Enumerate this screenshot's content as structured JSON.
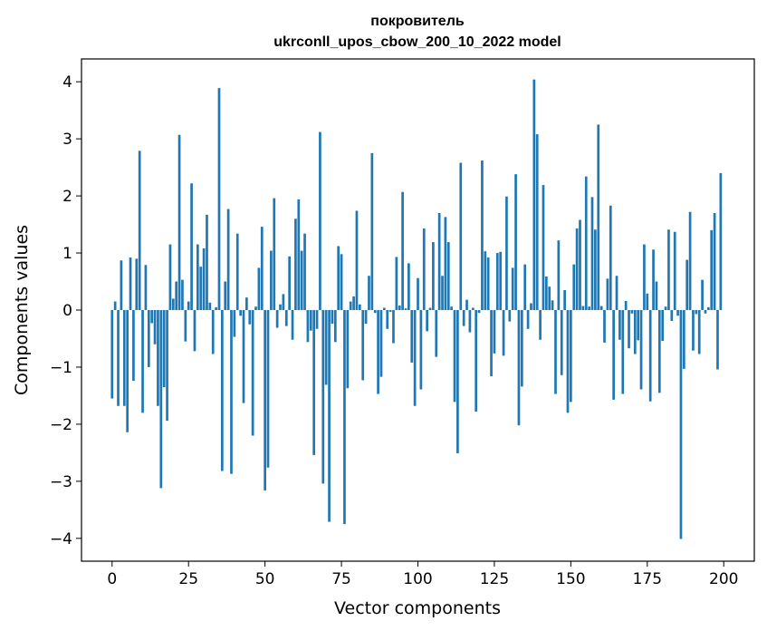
{
  "chart_data": {
    "type": "bar",
    "title": "покровитель",
    "subtitle": "ukrconll_upos_cbow_200_10_2022 model",
    "xlabel": "Vector components",
    "ylabel": "Components values",
    "xlim": [
      -10,
      210
    ],
    "ylim": [
      -4.4,
      4.4
    ],
    "xticks": [
      0,
      25,
      50,
      75,
      100,
      125,
      150,
      175,
      200
    ],
    "yticks": [
      -4,
      -3,
      -2,
      -1,
      0,
      1,
      2,
      3,
      4
    ],
    "xtick_labels": [
      "0",
      "25",
      "50",
      "75",
      "100",
      "125",
      "150",
      "175",
      "200"
    ],
    "ytick_labels": [
      "−4",
      "−3",
      "−2",
      "−1",
      "0",
      "1",
      "2",
      "3",
      "4"
    ],
    "bar_color": "#1f77b4",
    "grid": false,
    "x": [
      0,
      1,
      2,
      3,
      4,
      5,
      6,
      7,
      8,
      9,
      10,
      11,
      12,
      13,
      14,
      15,
      16,
      17,
      18,
      19,
      20,
      21,
      22,
      23,
      24,
      25,
      26,
      27,
      28,
      29,
      30,
      31,
      32,
      33,
      34,
      35,
      36,
      37,
      38,
      39,
      40,
      41,
      42,
      43,
      44,
      45,
      46,
      47,
      48,
      49,
      50,
      51,
      52,
      53,
      54,
      55,
      56,
      57,
      58,
      59,
      60,
      61,
      62,
      63,
      64,
      65,
      66,
      67,
      68,
      69,
      70,
      71,
      72,
      73,
      74,
      75,
      76,
      77,
      78,
      79,
      80,
      81,
      82,
      83,
      84,
      85,
      86,
      87,
      88,
      89,
      90,
      91,
      92,
      93,
      94,
      95,
      96,
      97,
      98,
      99,
      100,
      101,
      102,
      103,
      104,
      105,
      106,
      107,
      108,
      109,
      110,
      111,
      112,
      113,
      114,
      115,
      116,
      117,
      118,
      119,
      120,
      121,
      122,
      123,
      124,
      125,
      126,
      127,
      128,
      129,
      130,
      131,
      132,
      133,
      134,
      135,
      136,
      137,
      138,
      139,
      140,
      141,
      142,
      143,
      144,
      145,
      146,
      147,
      148,
      149,
      150,
      151,
      152,
      153,
      154,
      155,
      156,
      157,
      158,
      159,
      160,
      161,
      162,
      163,
      164,
      165,
      166,
      167,
      168,
      169,
      170,
      171,
      172,
      173,
      174,
      175,
      176,
      177,
      178,
      179,
      180,
      181,
      182,
      183,
      184,
      185,
      186,
      187,
      188,
      189,
      190,
      191,
      192,
      193,
      194,
      195,
      196,
      197,
      198,
      199
    ],
    "values": [
      -1.55,
      0.15,
      -1.68,
      0.87,
      -1.68,
      -2.14,
      0.92,
      -1.24,
      0.9,
      2.79,
      -1.8,
      0.79,
      -1.0,
      -0.23,
      -0.6,
      -1.68,
      -3.12,
      -1.35,
      -1.94,
      1.15,
      0.2,
      0.5,
      3.07,
      0.53,
      -0.55,
      0.15,
      2.22,
      -0.72,
      1.15,
      0.76,
      1.08,
      1.67,
      0.13,
      -0.77,
      0.05,
      3.89,
      -2.82,
      0.5,
      1.77,
      -2.87,
      -0.47,
      1.34,
      -0.1,
      -1.63,
      0.22,
      -0.25,
      -2.2,
      0.06,
      0.74,
      1.46,
      -3.16,
      -2.76,
      1.04,
      1.96,
      -0.31,
      0.1,
      0.28,
      -0.28,
      0.94,
      -0.52,
      1.6,
      1.94,
      1.04,
      1.34,
      -0.56,
      -0.36,
      -2.54,
      -0.33,
      3.12,
      -3.04,
      -1.31,
      -3.71,
      -0.24,
      -0.56,
      1.12,
      0.98,
      -3.75,
      -1.37,
      0.15,
      0.24,
      1.74,
      0.1,
      -1.23,
      -0.24,
      0.6,
      2.75,
      -0.05,
      -1.47,
      -1.17,
      0.04,
      -0.33,
      -0.03,
      -0.58,
      0.93,
      0.08,
      2.07,
      0.03,
      0.82,
      -0.92,
      -1.68,
      0.56,
      -1.39,
      1.43,
      -0.37,
      0.04,
      1.19,
      -0.82,
      1.7,
      0.6,
      1.63,
      1.19,
      0.06,
      -1.61,
      -2.51,
      2.58,
      -0.28,
      0.18,
      -0.39,
      0.04,
      -1.78,
      -0.05,
      2.62,
      1.03,
      0.92,
      -1.16,
      -0.76,
      1.0,
      1.02,
      -0.8,
      1.99,
      -0.2,
      0.74,
      2.38,
      -2.02,
      -1.34,
      0.8,
      -0.33,
      0.12,
      4.04,
      3.08,
      -0.52,
      2.19,
      0.59,
      0.41,
      0.17,
      -1.47,
      1.22,
      -1.14,
      0.35,
      -1.8,
      -1.61,
      0.8,
      1.43,
      1.58,
      0.07,
      2.34,
      0.06,
      1.98,
      1.41,
      3.25,
      0.07,
      -0.57,
      0.55,
      1.83,
      -1.57,
      0.6,
      -0.52,
      -1.47,
      0.16,
      -0.67,
      -0.06,
      -0.77,
      -0.53,
      -1.39,
      1.15,
      0.29,
      -1.6,
      1.06,
      0.5,
      -1.45,
      -0.54,
      0.06,
      1.41,
      -0.19,
      1.37,
      -0.1,
      -4.01,
      -1.03,
      0.88,
      1.72,
      -0.71,
      -0.07,
      -0.77,
      0.53,
      -0.06,
      0.05,
      1.4,
      1.7,
      -1.04,
      2.4
    ]
  }
}
